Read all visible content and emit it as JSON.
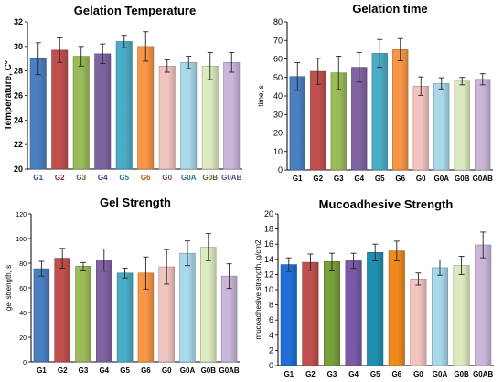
{
  "chart_data": [
    {
      "type": "bar",
      "title": "Gelation Temperature",
      "xlabel": "",
      "ylabel": "Temperature, C°",
      "ylim": [
        20,
        32
      ],
      "yticks": [
        "20",
        "22",
        "24",
        "26",
        "28",
        "30",
        "32"
      ],
      "grid": false,
      "categories": [
        "G1",
        "G2",
        "G3",
        "G4",
        "G5",
        "G6",
        "G0",
        "G0A",
        "G0B",
        "G0AB"
      ],
      "values": [
        29.0,
        29.7,
        29.2,
        29.4,
        30.4,
        30.0,
        28.4,
        28.7,
        28.4,
        28.7
      ],
      "errors": [
        1.3,
        1.0,
        0.8,
        0.8,
        0.5,
        1.2,
        0.5,
        0.5,
        1.1,
        0.8
      ],
      "colors": [
        "#4a7fc1",
        "#c0504d",
        "#9bbb59",
        "#8064a2",
        "#4bacc6",
        "#f79646",
        "#f2c4c0",
        "#a8d8ea",
        "#dceabf",
        "#c9b6d9"
      ],
      "label_colors": [
        "#2f4f8f",
        "#8b1a1a",
        "#3e6b1f",
        "#4b2e73",
        "#1f6f86",
        "#b35a00",
        "#7a4a4a",
        "#2d6f8a",
        "#4d6b2a",
        "#5b4a73"
      ]
    },
    {
      "type": "bar",
      "title": "Gelation time",
      "xlabel": "",
      "ylabel": "time, s",
      "ylim": [
        0,
        80
      ],
      "yticks": [
        "0",
        "10",
        "20",
        "30",
        "40",
        "50",
        "60",
        "70",
        "80"
      ],
      "grid": false,
      "categories": [
        "G1",
        "G2",
        "G3",
        "G4",
        "G5",
        "G6",
        "G0",
        "G0A",
        "G0B",
        "G0AB"
      ],
      "values": [
        50.5,
        53.3,
        52.5,
        55.5,
        63.0,
        65.0,
        45.3,
        46.8,
        48.0,
        49.0
      ],
      "errors": [
        7.5,
        7.0,
        9.0,
        8.0,
        7.5,
        6.0,
        5.0,
        3.0,
        2.0,
        3.0
      ],
      "colors": [
        "#4a7fc1",
        "#c0504d",
        "#9bbb59",
        "#8064a2",
        "#4bacc6",
        "#f79646",
        "#f2c4c0",
        "#a8d8ea",
        "#dceabf",
        "#c9b6d9"
      ],
      "label_colors": [
        "#000000",
        "#000000",
        "#000000",
        "#000000",
        "#000000",
        "#000000",
        "#000000",
        "#000000",
        "#000000",
        "#000000"
      ]
    },
    {
      "type": "bar",
      "title": "Gel Strength",
      "xlabel": "",
      "ylabel": "gel strength, s",
      "ylim": [
        0,
        120
      ],
      "yticks": [
        "0",
        "20",
        "40",
        "60",
        "80",
        "100",
        "120"
      ],
      "grid": false,
      "categories": [
        "G1",
        "G2",
        "G3",
        "G4",
        "G5",
        "G6",
        "G0",
        "G0A",
        "G0B",
        "G0AB"
      ],
      "values": [
        75.5,
        84.0,
        77.5,
        82.5,
        72.0,
        72.0,
        77.0,
        88.0,
        93.0,
        69.5
      ],
      "errors": [
        6.0,
        8.0,
        3.0,
        9.0,
        4.0,
        13.0,
        14.0,
        10.0,
        11.0,
        10.0
      ],
      "colors": [
        "#4a7fc1",
        "#c0504d",
        "#9bbb59",
        "#8064a2",
        "#4bacc6",
        "#f79646",
        "#f2c4c0",
        "#a8d8ea",
        "#dceabf",
        "#c9b6d9"
      ],
      "label_colors": [
        "#000000",
        "#000000",
        "#000000",
        "#000000",
        "#000000",
        "#000000",
        "#000000",
        "#000000",
        "#000000",
        "#000000"
      ]
    },
    {
      "type": "bar",
      "title": "Mucoadhesive Strength",
      "xlabel": "",
      "ylabel": "mucoadhesive strength, g/cm2",
      "ylim": [
        0,
        20
      ],
      "yticks": [
        "0",
        "2",
        "4",
        "6",
        "8",
        "10",
        "12",
        "14",
        "16",
        "18",
        "20"
      ],
      "grid": false,
      "categories": [
        "G1",
        "G2",
        "G3",
        "G4",
        "G5",
        "G6",
        "G0",
        "G0A",
        "G0B",
        "G0AB"
      ],
      "values": [
        13.3,
        13.6,
        13.7,
        13.8,
        14.9,
        15.1,
        11.4,
        12.9,
        13.2,
        15.9
      ],
      "errors": [
        0.9,
        1.1,
        1.1,
        1.0,
        1.1,
        1.3,
        0.8,
        1.0,
        1.2,
        1.7
      ],
      "colors": [
        "#1f6fd6",
        "#c0504d",
        "#77a03c",
        "#7a5aa6",
        "#1f8fb0",
        "#ef8a1e",
        "#f2c4c0",
        "#a8d8ea",
        "#dceabf",
        "#c9b6d9"
      ],
      "label_colors": [
        "#000000",
        "#000000",
        "#000000",
        "#000000",
        "#000000",
        "#000000",
        "#000000",
        "#000000",
        "#000000",
        "#000000"
      ]
    }
  ]
}
